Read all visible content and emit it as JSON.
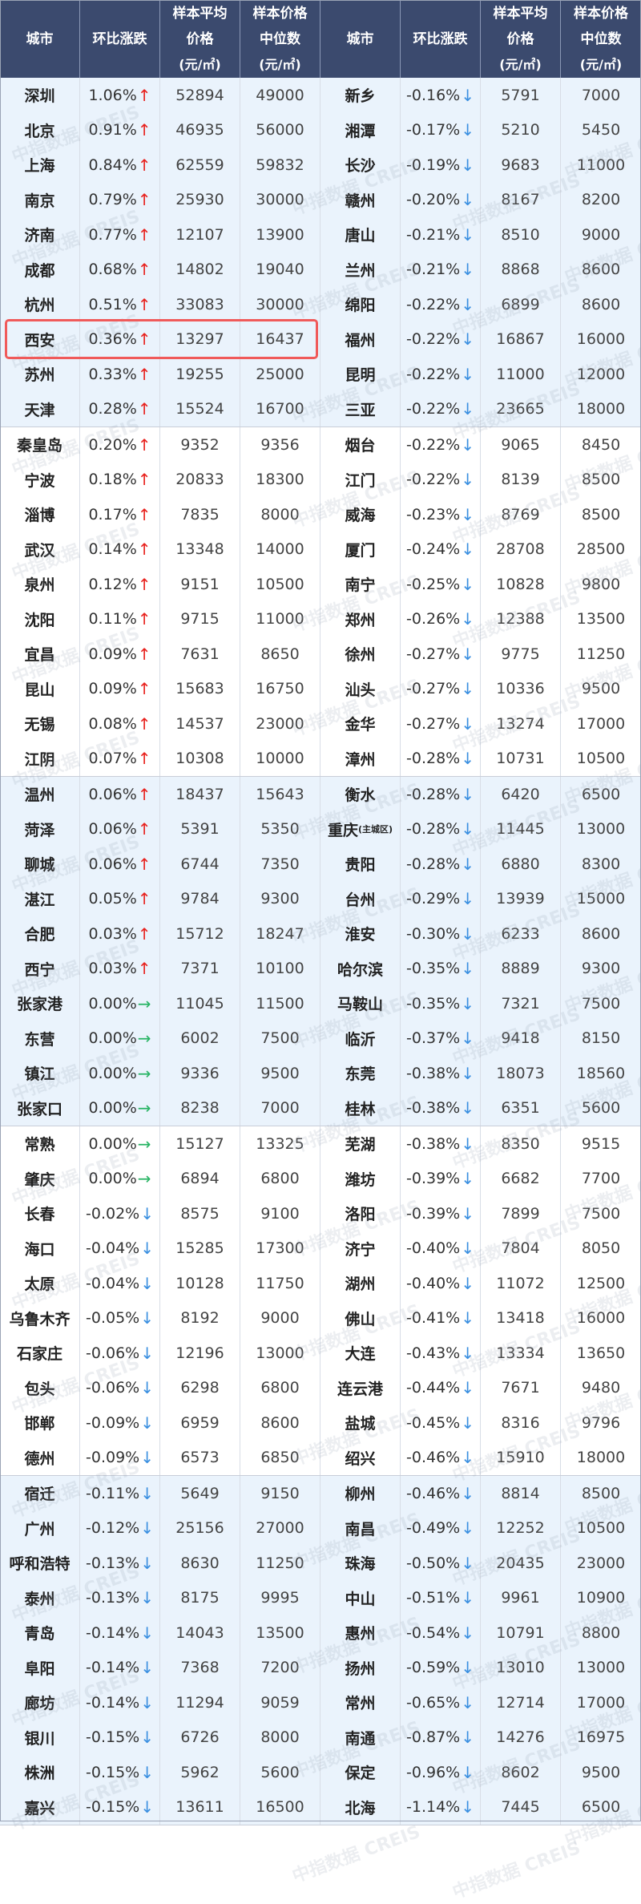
{
  "header": {
    "columns": [
      {
        "line1": "城市",
        "line2": "",
        "unit": ""
      },
      {
        "line1": "环比涨跌",
        "line2": "",
        "unit": ""
      },
      {
        "line1": "样本平均",
        "line2": "价格",
        "unit": "(元/㎡)"
      },
      {
        "line1": "样本价格",
        "line2": "中位数",
        "unit": "(元/㎡)"
      },
      {
        "line1": "城市",
        "line2": "",
        "unit": ""
      },
      {
        "line1": "环比涨跌",
        "line2": "",
        "unit": ""
      },
      {
        "line1": "样本平均",
        "line2": "价格",
        "unit": "(元/㎡)"
      },
      {
        "line1": "样本价格",
        "line2": "中位数",
        "unit": "(元/㎡)"
      }
    ]
  },
  "colors": {
    "header_bg": "#3b4a6e",
    "up": "#e8211d",
    "down": "#3a8fe0",
    "flat": "#28b464",
    "highlight": "#f05a5a",
    "band": "#eaf3fc"
  },
  "arrows": {
    "up": "↑",
    "down": "↓",
    "flat": "→"
  },
  "highlighted_city": "西安",
  "watermark": "中指数据 CREIS",
  "rows": [
    {
      "l": {
        "city": "深圳",
        "change": "1.06%",
        "dir": "up",
        "avg": "52894",
        "median": "49000"
      },
      "r": {
        "city": "新乡",
        "change": "-0.16%",
        "dir": "down",
        "avg": "5791",
        "median": "7000"
      }
    },
    {
      "l": {
        "city": "北京",
        "change": "0.91%",
        "dir": "up",
        "avg": "46935",
        "median": "56000"
      },
      "r": {
        "city": "湘潭",
        "change": "-0.17%",
        "dir": "down",
        "avg": "5210",
        "median": "5450"
      }
    },
    {
      "l": {
        "city": "上海",
        "change": "0.84%",
        "dir": "up",
        "avg": "62559",
        "median": "59832"
      },
      "r": {
        "city": "长沙",
        "change": "-0.19%",
        "dir": "down",
        "avg": "9683",
        "median": "11000"
      }
    },
    {
      "l": {
        "city": "南京",
        "change": "0.79%",
        "dir": "up",
        "avg": "25930",
        "median": "30000"
      },
      "r": {
        "city": "赣州",
        "change": "-0.20%",
        "dir": "down",
        "avg": "8167",
        "median": "8200"
      }
    },
    {
      "l": {
        "city": "济南",
        "change": "0.77%",
        "dir": "up",
        "avg": "12107",
        "median": "13900"
      },
      "r": {
        "city": "唐山",
        "change": "-0.21%",
        "dir": "down",
        "avg": "8510",
        "median": "9000"
      }
    },
    {
      "l": {
        "city": "成都",
        "change": "0.68%",
        "dir": "up",
        "avg": "14802",
        "median": "19040"
      },
      "r": {
        "city": "兰州",
        "change": "-0.21%",
        "dir": "down",
        "avg": "8868",
        "median": "8600"
      }
    },
    {
      "l": {
        "city": "杭州",
        "change": "0.51%",
        "dir": "up",
        "avg": "33083",
        "median": "30000"
      },
      "r": {
        "city": "绵阳",
        "change": "-0.22%",
        "dir": "down",
        "avg": "6899",
        "median": "8600"
      }
    },
    {
      "l": {
        "city": "西安",
        "change": "0.36%",
        "dir": "up",
        "avg": "13297",
        "median": "16437"
      },
      "r": {
        "city": "福州",
        "change": "-0.22%",
        "dir": "down",
        "avg": "16867",
        "median": "16000"
      }
    },
    {
      "l": {
        "city": "苏州",
        "change": "0.33%",
        "dir": "up",
        "avg": "19255",
        "median": "25000"
      },
      "r": {
        "city": "昆明",
        "change": "-0.22%",
        "dir": "down",
        "avg": "11000",
        "median": "12000"
      }
    },
    {
      "l": {
        "city": "天津",
        "change": "0.28%",
        "dir": "up",
        "avg": "15524",
        "median": "16700"
      },
      "r": {
        "city": "三亚",
        "change": "-0.22%",
        "dir": "down",
        "avg": "23665",
        "median": "18000"
      }
    },
    {
      "l": {
        "city": "秦皇岛",
        "change": "0.20%",
        "dir": "up",
        "avg": "9352",
        "median": "9356"
      },
      "r": {
        "city": "烟台",
        "change": "-0.22%",
        "dir": "down",
        "avg": "9065",
        "median": "8450"
      }
    },
    {
      "l": {
        "city": "宁波",
        "change": "0.18%",
        "dir": "up",
        "avg": "20833",
        "median": "18300"
      },
      "r": {
        "city": "江门",
        "change": "-0.22%",
        "dir": "down",
        "avg": "8139",
        "median": "8500"
      }
    },
    {
      "l": {
        "city": "淄博",
        "change": "0.17%",
        "dir": "up",
        "avg": "7835",
        "median": "8000"
      },
      "r": {
        "city": "威海",
        "change": "-0.23%",
        "dir": "down",
        "avg": "8769",
        "median": "8500"
      }
    },
    {
      "l": {
        "city": "武汉",
        "change": "0.14%",
        "dir": "up",
        "avg": "13348",
        "median": "14000"
      },
      "r": {
        "city": "厦门",
        "change": "-0.24%",
        "dir": "down",
        "avg": "28708",
        "median": "28500"
      }
    },
    {
      "l": {
        "city": "泉州",
        "change": "0.12%",
        "dir": "up",
        "avg": "9151",
        "median": "10500"
      },
      "r": {
        "city": "南宁",
        "change": "-0.25%",
        "dir": "down",
        "avg": "10828",
        "median": "9800"
      }
    },
    {
      "l": {
        "city": "沈阳",
        "change": "0.11%",
        "dir": "up",
        "avg": "9715",
        "median": "11000"
      },
      "r": {
        "city": "郑州",
        "change": "-0.26%",
        "dir": "down",
        "avg": "12388",
        "median": "13500"
      }
    },
    {
      "l": {
        "city": "宜昌",
        "change": "0.09%",
        "dir": "up",
        "avg": "7631",
        "median": "8650"
      },
      "r": {
        "city": "徐州",
        "change": "-0.27%",
        "dir": "down",
        "avg": "9775",
        "median": "11250"
      }
    },
    {
      "l": {
        "city": "昆山",
        "change": "0.09%",
        "dir": "up",
        "avg": "15683",
        "median": "16750"
      },
      "r": {
        "city": "汕头",
        "change": "-0.27%",
        "dir": "down",
        "avg": "10336",
        "median": "9500"
      }
    },
    {
      "l": {
        "city": "无锡",
        "change": "0.08%",
        "dir": "up",
        "avg": "14537",
        "median": "23000"
      },
      "r": {
        "city": "金华",
        "change": "-0.27%",
        "dir": "down",
        "avg": "13274",
        "median": "17000"
      }
    },
    {
      "l": {
        "city": "江阴",
        "change": "0.07%",
        "dir": "up",
        "avg": "10308",
        "median": "10000"
      },
      "r": {
        "city": "漳州",
        "change": "-0.28%",
        "dir": "down",
        "avg": "10731",
        "median": "10500"
      }
    },
    {
      "l": {
        "city": "温州",
        "change": "0.06%",
        "dir": "up",
        "avg": "18437",
        "median": "15643"
      },
      "r": {
        "city": "衡水",
        "change": "-0.28%",
        "dir": "down",
        "avg": "6420",
        "median": "6500"
      }
    },
    {
      "l": {
        "city": "菏泽",
        "change": "0.06%",
        "dir": "up",
        "avg": "5391",
        "median": "5350"
      },
      "r": {
        "city": "重庆",
        "note": "(主城区)",
        "change": "-0.28%",
        "dir": "down",
        "avg": "11445",
        "median": "13000"
      }
    },
    {
      "l": {
        "city": "聊城",
        "change": "0.06%",
        "dir": "up",
        "avg": "6744",
        "median": "7350"
      },
      "r": {
        "city": "贵阳",
        "change": "-0.28%",
        "dir": "down",
        "avg": "6880",
        "median": "8300"
      }
    },
    {
      "l": {
        "city": "湛江",
        "change": "0.05%",
        "dir": "up",
        "avg": "9784",
        "median": "9300"
      },
      "r": {
        "city": "台州",
        "change": "-0.29%",
        "dir": "down",
        "avg": "13939",
        "median": "15000"
      }
    },
    {
      "l": {
        "city": "合肥",
        "change": "0.03%",
        "dir": "up",
        "avg": "15712",
        "median": "18247"
      },
      "r": {
        "city": "淮安",
        "change": "-0.30%",
        "dir": "down",
        "avg": "6233",
        "median": "8600"
      }
    },
    {
      "l": {
        "city": "西宁",
        "change": "0.03%",
        "dir": "up",
        "avg": "7371",
        "median": "10100"
      },
      "r": {
        "city": "哈尔滨",
        "change": "-0.35%",
        "dir": "down",
        "avg": "8889",
        "median": "9300"
      }
    },
    {
      "l": {
        "city": "张家港",
        "change": "0.00%",
        "dir": "flat",
        "avg": "11045",
        "median": "11500"
      },
      "r": {
        "city": "马鞍山",
        "change": "-0.35%",
        "dir": "down",
        "avg": "7321",
        "median": "7500"
      }
    },
    {
      "l": {
        "city": "东营",
        "change": "0.00%",
        "dir": "flat",
        "avg": "6002",
        "median": "7500"
      },
      "r": {
        "city": "临沂",
        "change": "-0.37%",
        "dir": "down",
        "avg": "9418",
        "median": "8150"
      }
    },
    {
      "l": {
        "city": "镇江",
        "change": "0.00%",
        "dir": "flat",
        "avg": "9336",
        "median": "9500"
      },
      "r": {
        "city": "东莞",
        "change": "-0.38%",
        "dir": "down",
        "avg": "18073",
        "median": "18560"
      }
    },
    {
      "l": {
        "city": "张家口",
        "change": "0.00%",
        "dir": "flat",
        "avg": "8238",
        "median": "7000"
      },
      "r": {
        "city": "桂林",
        "change": "-0.38%",
        "dir": "down",
        "avg": "6351",
        "median": "5600"
      }
    },
    {
      "l": {
        "city": "常熟",
        "change": "0.00%",
        "dir": "flat",
        "avg": "15127",
        "median": "13325"
      },
      "r": {
        "city": "芜湖",
        "change": "-0.38%",
        "dir": "down",
        "avg": "8350",
        "median": "9515"
      }
    },
    {
      "l": {
        "city": "肇庆",
        "change": "0.00%",
        "dir": "flat",
        "avg": "6894",
        "median": "6800"
      },
      "r": {
        "city": "潍坊",
        "change": "-0.39%",
        "dir": "down",
        "avg": "6682",
        "median": "7700"
      }
    },
    {
      "l": {
        "city": "长春",
        "change": "-0.02%",
        "dir": "down",
        "avg": "8575",
        "median": "9100"
      },
      "r": {
        "city": "洛阳",
        "change": "-0.39%",
        "dir": "down",
        "avg": "7899",
        "median": "7500"
      }
    },
    {
      "l": {
        "city": "海口",
        "change": "-0.04%",
        "dir": "down",
        "avg": "15285",
        "median": "17300"
      },
      "r": {
        "city": "济宁",
        "change": "-0.40%",
        "dir": "down",
        "avg": "7804",
        "median": "8050"
      }
    },
    {
      "l": {
        "city": "太原",
        "change": "-0.04%",
        "dir": "down",
        "avg": "10128",
        "median": "11750"
      },
      "r": {
        "city": "湖州",
        "change": "-0.40%",
        "dir": "down",
        "avg": "11072",
        "median": "12500"
      }
    },
    {
      "l": {
        "city": "乌鲁木齐",
        "change": "-0.05%",
        "dir": "down",
        "avg": "8192",
        "median": "9000"
      },
      "r": {
        "city": "佛山",
        "change": "-0.41%",
        "dir": "down",
        "avg": "13418",
        "median": "16000"
      }
    },
    {
      "l": {
        "city": "石家庄",
        "change": "-0.06%",
        "dir": "down",
        "avg": "12196",
        "median": "13000"
      },
      "r": {
        "city": "大连",
        "change": "-0.43%",
        "dir": "down",
        "avg": "13334",
        "median": "13650"
      }
    },
    {
      "l": {
        "city": "包头",
        "change": "-0.06%",
        "dir": "down",
        "avg": "6298",
        "median": "6800"
      },
      "r": {
        "city": "连云港",
        "change": "-0.44%",
        "dir": "down",
        "avg": "7671",
        "median": "9480"
      }
    },
    {
      "l": {
        "city": "邯郸",
        "change": "-0.09%",
        "dir": "down",
        "avg": "6959",
        "median": "8600"
      },
      "r": {
        "city": "盐城",
        "change": "-0.45%",
        "dir": "down",
        "avg": "8316",
        "median": "9796"
      }
    },
    {
      "l": {
        "city": "德州",
        "change": "-0.09%",
        "dir": "down",
        "avg": "6573",
        "median": "6850"
      },
      "r": {
        "city": "绍兴",
        "change": "-0.46%",
        "dir": "down",
        "avg": "15910",
        "median": "18000"
      }
    },
    {
      "l": {
        "city": "宿迁",
        "change": "-0.11%",
        "dir": "down",
        "avg": "5649",
        "median": "9150"
      },
      "r": {
        "city": "柳州",
        "change": "-0.46%",
        "dir": "down",
        "avg": "8814",
        "median": "8500"
      }
    },
    {
      "l": {
        "city": "广州",
        "change": "-0.12%",
        "dir": "down",
        "avg": "25156",
        "median": "27000"
      },
      "r": {
        "city": "南昌",
        "change": "-0.49%",
        "dir": "down",
        "avg": "12252",
        "median": "10500"
      }
    },
    {
      "l": {
        "city": "呼和浩特",
        "change": "-0.13%",
        "dir": "down",
        "avg": "8630",
        "median": "11250"
      },
      "r": {
        "city": "珠海",
        "change": "-0.50%",
        "dir": "down",
        "avg": "20435",
        "median": "23000"
      }
    },
    {
      "l": {
        "city": "泰州",
        "change": "-0.13%",
        "dir": "down",
        "avg": "8175",
        "median": "9995"
      },
      "r": {
        "city": "中山",
        "change": "-0.51%",
        "dir": "down",
        "avg": "9961",
        "median": "10900"
      }
    },
    {
      "l": {
        "city": "青岛",
        "change": "-0.14%",
        "dir": "down",
        "avg": "14043",
        "median": "13500"
      },
      "r": {
        "city": "惠州",
        "change": "-0.54%",
        "dir": "down",
        "avg": "10791",
        "median": "8800"
      }
    },
    {
      "l": {
        "city": "阜阳",
        "change": "-0.14%",
        "dir": "down",
        "avg": "7368",
        "median": "7200"
      },
      "r": {
        "city": "扬州",
        "change": "-0.59%",
        "dir": "down",
        "avg": "13010",
        "median": "13000"
      }
    },
    {
      "l": {
        "city": "廊坊",
        "change": "-0.14%",
        "dir": "down",
        "avg": "11294",
        "median": "9059"
      },
      "r": {
        "city": "常州",
        "change": "-0.65%",
        "dir": "down",
        "avg": "12714",
        "median": "17000"
      }
    },
    {
      "l": {
        "city": "银川",
        "change": "-0.15%",
        "dir": "down",
        "avg": "6726",
        "median": "8000"
      },
      "r": {
        "city": "南通",
        "change": "-0.87%",
        "dir": "down",
        "avg": "14276",
        "median": "16975"
      }
    },
    {
      "l": {
        "city": "株洲",
        "change": "-0.15%",
        "dir": "down",
        "avg": "5962",
        "median": "5600"
      },
      "r": {
        "city": "保定",
        "change": "-0.96%",
        "dir": "down",
        "avg": "8602",
        "median": "9500"
      }
    },
    {
      "l": {
        "city": "嘉兴",
        "change": "-0.15%",
        "dir": "down",
        "avg": "13611",
        "median": "16500"
      },
      "r": {
        "city": "北海",
        "change": "-1.14%",
        "dir": "down",
        "avg": "7445",
        "median": "6500"
      }
    }
  ]
}
